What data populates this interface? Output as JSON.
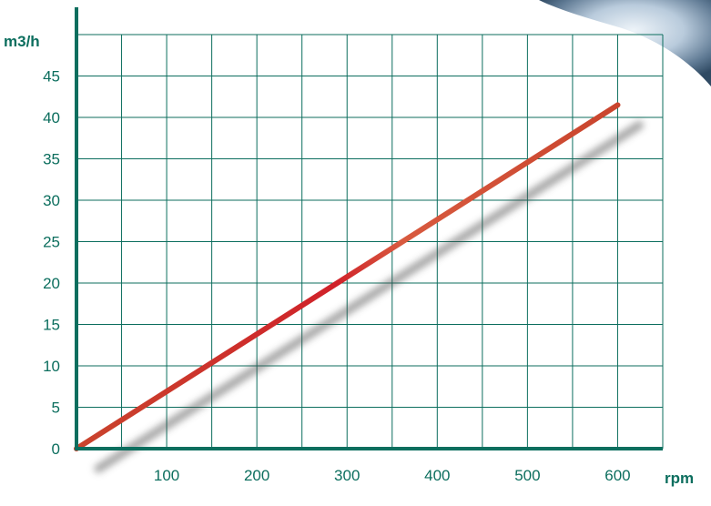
{
  "colors": {
    "axis": "#0c6e5e",
    "grid": "#0c6e5e",
    "line": "#c9442d",
    "line_highlight": "#d0222a",
    "text": "#0c6e5e"
  },
  "chart_data": {
    "type": "line",
    "title": "",
    "xlabel": "rpm",
    "ylabel": "m3/h",
    "xlim": [
      0,
      650
    ],
    "ylim": [
      0,
      50
    ],
    "x_ticks": [
      100,
      200,
      300,
      400,
      500,
      600
    ],
    "y_ticks": [
      0,
      5,
      10,
      15,
      20,
      25,
      30,
      35,
      40,
      45
    ],
    "grid": true,
    "legend": "none",
    "series": [
      {
        "x": [
          0,
          600
        ],
        "y": [
          0,
          41.5
        ]
      }
    ]
  }
}
